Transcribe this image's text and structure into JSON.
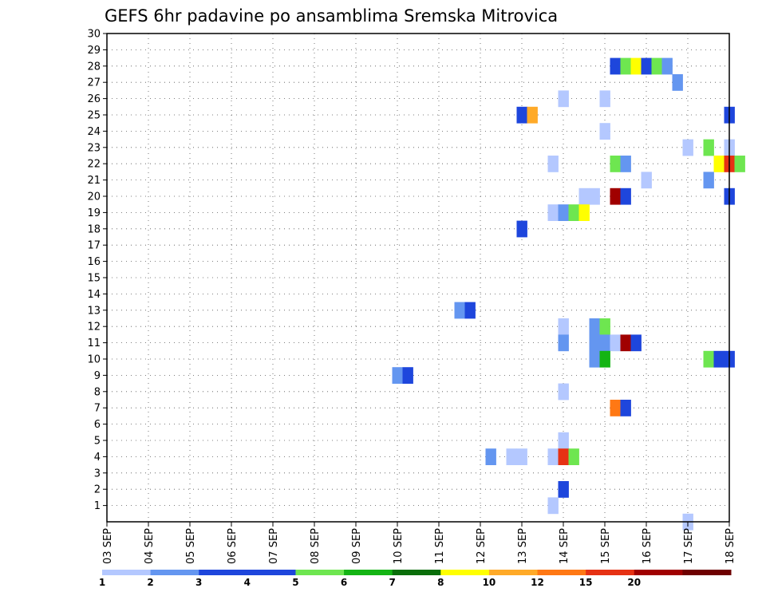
{
  "chart_data": {
    "type": "heatmap",
    "title": "GEFS 6hr padavine po ansamblima Sremska Mitrovica",
    "x_tick_labels": [
      "03 SEP",
      "04 SEP",
      "05 SEP",
      "06 SEP",
      "07 SEP",
      "08 SEP",
      "09 SEP",
      "10 SEP",
      "11 SEP",
      "12 SEP",
      "13 SEP",
      "14 SEP",
      "15 SEP",
      "16 SEP",
      "17 SEP",
      "18 SEP"
    ],
    "y_tick_labels": [
      "1",
      "2",
      "3",
      "4",
      "5",
      "6",
      "7",
      "8",
      "9",
      "10",
      "11",
      "12",
      "13",
      "14",
      "15",
      "16",
      "17",
      "18",
      "19",
      "20",
      "21",
      "22",
      "23",
      "24",
      "25",
      "26",
      "27",
      "28",
      "29",
      "30"
    ],
    "x_range_days": [
      3,
      18
    ],
    "y_range": [
      0,
      30
    ],
    "grid": true,
    "legend": {
      "placement": "bottom",
      "labels": [
        "1",
        "2",
        "3",
        "4",
        "5",
        "6",
        "7",
        "8",
        "10",
        "12",
        "15",
        "20"
      ],
      "colors": [
        "#b4c8ff",
        "#6496f0",
        "#1e46dc",
        "#1e46dc",
        "#6ee650",
        "#14b414",
        "#0a6e0a",
        "#ffff00",
        "#ffaa28",
        "#ff7814",
        "#e63214",
        "#a00000",
        "#6e0000"
      ]
    },
    "cells": [
      {
        "day": 13.0,
        "member": 25,
        "cat": 2
      },
      {
        "day": 13.25,
        "member": 25,
        "cat": 8
      },
      {
        "day": 14.0,
        "member": 26,
        "cat": 0
      },
      {
        "day": 15.0,
        "member": 26,
        "cat": 0
      },
      {
        "day": 15.25,
        "member": 28,
        "cat": 2
      },
      {
        "day": 15.5,
        "member": 28,
        "cat": 4
      },
      {
        "day": 15.75,
        "member": 28,
        "cat": 7
      },
      {
        "day": 16.0,
        "member": 28,
        "cat": 2
      },
      {
        "day": 16.25,
        "member": 28,
        "cat": 4
      },
      {
        "day": 16.5,
        "member": 28,
        "cat": 1
      },
      {
        "day": 16.75,
        "member": 27,
        "cat": 1
      },
      {
        "day": 18.0,
        "member": 25,
        "cat": 2
      },
      {
        "day": 15.0,
        "member": 24,
        "cat": 0
      },
      {
        "day": 17.0,
        "member": 23,
        "cat": 0
      },
      {
        "day": 17.5,
        "member": 23,
        "cat": 4
      },
      {
        "day": 18.0,
        "member": 23,
        "cat": 0
      },
      {
        "day": 13.75,
        "member": 22,
        "cat": 0
      },
      {
        "day": 15.25,
        "member": 22,
        "cat": 4
      },
      {
        "day": 15.5,
        "member": 22,
        "cat": 1
      },
      {
        "day": 17.75,
        "member": 22,
        "cat": 7
      },
      {
        "day": 18.0,
        "member": 22,
        "cat": 10
      },
      {
        "day": 18.25,
        "member": 22,
        "cat": 4
      },
      {
        "day": 16.0,
        "member": 21,
        "cat": 0
      },
      {
        "day": 17.5,
        "member": 21,
        "cat": 1
      },
      {
        "day": 14.5,
        "member": 20,
        "cat": 0
      },
      {
        "day": 14.75,
        "member": 20,
        "cat": 0
      },
      {
        "day": 15.25,
        "member": 20,
        "cat": 11
      },
      {
        "day": 15.5,
        "member": 20,
        "cat": 2
      },
      {
        "day": 18.0,
        "member": 20,
        "cat": 2
      },
      {
        "day": 13.75,
        "member": 19,
        "cat": 0
      },
      {
        "day": 14.0,
        "member": 19,
        "cat": 1
      },
      {
        "day": 14.25,
        "member": 19,
        "cat": 4
      },
      {
        "day": 14.5,
        "member": 19,
        "cat": 7
      },
      {
        "day": 13.0,
        "member": 18,
        "cat": 2
      },
      {
        "day": 11.5,
        "member": 13,
        "cat": 1
      },
      {
        "day": 11.75,
        "member": 13,
        "cat": 2
      },
      {
        "day": 14.0,
        "member": 12,
        "cat": 0
      },
      {
        "day": 14.75,
        "member": 12,
        "cat": 1
      },
      {
        "day": 15.0,
        "member": 12,
        "cat": 4
      },
      {
        "day": 14.0,
        "member": 11,
        "cat": 1
      },
      {
        "day": 14.75,
        "member": 11,
        "cat": 1
      },
      {
        "day": 15.0,
        "member": 11,
        "cat": 1
      },
      {
        "day": 15.25,
        "member": 11,
        "cat": 0
      },
      {
        "day": 15.5,
        "member": 11,
        "cat": 11
      },
      {
        "day": 15.75,
        "member": 11,
        "cat": 2
      },
      {
        "day": 14.75,
        "member": 10,
        "cat": 1
      },
      {
        "day": 15.0,
        "member": 10,
        "cat": 5
      },
      {
        "day": 17.5,
        "member": 10,
        "cat": 4
      },
      {
        "day": 17.75,
        "member": 10,
        "cat": 2
      },
      {
        "day": 18.0,
        "member": 10,
        "cat": 2
      },
      {
        "day": 10.0,
        "member": 9,
        "cat": 1
      },
      {
        "day": 10.25,
        "member": 9,
        "cat": 2
      },
      {
        "day": 14.0,
        "member": 8,
        "cat": 0
      },
      {
        "day": 15.25,
        "member": 7,
        "cat": 9
      },
      {
        "day": 15.5,
        "member": 7,
        "cat": 2
      },
      {
        "day": 14.0,
        "member": 5,
        "cat": 0
      },
      {
        "day": 12.25,
        "member": 4,
        "cat": 1
      },
      {
        "day": 12.75,
        "member": 4,
        "cat": 0
      },
      {
        "day": 13.0,
        "member": 4,
        "cat": 0
      },
      {
        "day": 13.75,
        "member": 4,
        "cat": 0
      },
      {
        "day": 14.0,
        "member": 4,
        "cat": 10
      },
      {
        "day": 14.25,
        "member": 4,
        "cat": 4
      },
      {
        "day": 14.0,
        "member": 2,
        "cat": 2
      },
      {
        "day": 13.75,
        "member": 1,
        "cat": 0
      },
      {
        "day": 17.0,
        "member": 0,
        "cat": 0
      }
    ]
  }
}
